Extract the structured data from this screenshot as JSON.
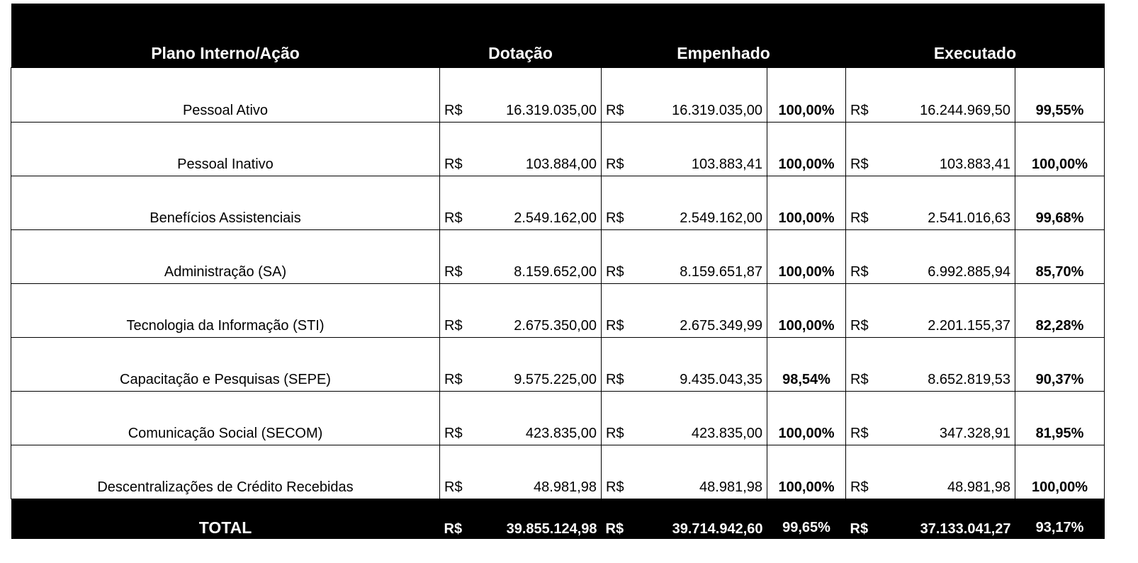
{
  "headers": {
    "label": "Plano Interno/Ação",
    "dotacao": "Dotação",
    "empenhado": "Empenhado",
    "executado": "Executado"
  },
  "currency": "R$",
  "rows": [
    {
      "label": "Pessoal Ativo",
      "dotacao": "16.319.035,00",
      "empenhado": "16.319.035,00",
      "empenhado_pct": "100,00%",
      "executado": "16.244.969,50",
      "executado_pct": "99,55%"
    },
    {
      "label": "Pessoal Inativo",
      "dotacao": "103.884,00",
      "empenhado": "103.883,41",
      "empenhado_pct": "100,00%",
      "executado": "103.883,41",
      "executado_pct": "100,00%"
    },
    {
      "label": "Benefícios Assistenciais",
      "dotacao": "2.549.162,00",
      "empenhado": "2.549.162,00",
      "empenhado_pct": "100,00%",
      "executado": "2.541.016,63",
      "executado_pct": "99,68%"
    },
    {
      "label": "Administração (SA)",
      "dotacao": "8.159.652,00",
      "empenhado": "8.159.651,87",
      "empenhado_pct": "100,00%",
      "executado": "6.992.885,94",
      "executado_pct": "85,70%"
    },
    {
      "label": "Tecnologia da Informação (STI)",
      "dotacao": "2.675.350,00",
      "empenhado": "2.675.349,99",
      "empenhado_pct": "100,00%",
      "executado": "2.201.155,37",
      "executado_pct": "82,28%"
    },
    {
      "label": "Capacitação e Pesquisas (SEPE)",
      "dotacao": "9.575.225,00",
      "empenhado": "9.435.043,35",
      "empenhado_pct": "98,54%",
      "executado": "8.652.819,53",
      "executado_pct": "90,37%"
    },
    {
      "label": "Comunicação Social (SECOM)",
      "dotacao": "423.835,00",
      "empenhado": "423.835,00",
      "empenhado_pct": "100,00%",
      "executado": "347.328,91",
      "executado_pct": "81,95%"
    },
    {
      "label": "Descentralizações de Crédito Recebidas",
      "dotacao": "48.981,98",
      "empenhado": "48.981,98",
      "empenhado_pct": "100,00%",
      "executado": "48.981,98",
      "executado_pct": "100,00%"
    }
  ],
  "total": {
    "label": "TOTAL",
    "dotacao": "39.855.124,98",
    "empenhado": "39.714.942,60",
    "empenhado_pct": "99,65%",
    "executado": "37.133.041,27",
    "executado_pct": "93,17%"
  }
}
